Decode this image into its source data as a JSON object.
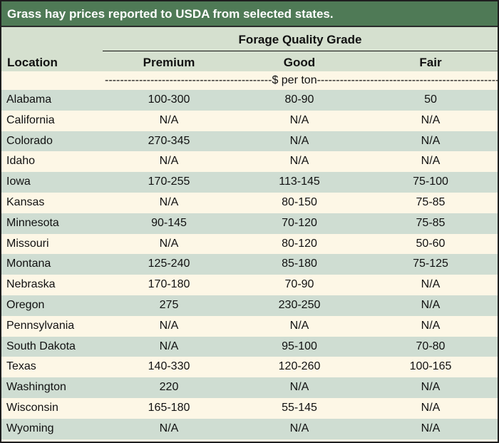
{
  "title": "Grass hay prices reported to USDA from selected states.",
  "header": {
    "location": "Location",
    "group": "Forage Quality Grade",
    "columns": [
      "Premium",
      "Good",
      "Fair"
    ]
  },
  "units": "--------------------------------------------$ per ton----------------------------------------------------",
  "rows": [
    {
      "location": "Alabama",
      "premium": "100-300",
      "good": "80-90",
      "fair": "50"
    },
    {
      "location": "California",
      "premium": "N/A",
      "good": "N/A",
      "fair": "N/A"
    },
    {
      "location": "Colorado",
      "premium": "270-345",
      "good": "N/A",
      "fair": "N/A"
    },
    {
      "location": "Idaho",
      "premium": "N/A",
      "good": "N/A",
      "fair": "N/A"
    },
    {
      "location": "Iowa",
      "premium": "170-255",
      "good": "113-145",
      "fair": "75-100"
    },
    {
      "location": "Kansas",
      "premium": "N/A",
      "good": "80-150",
      "fair": "75-85"
    },
    {
      "location": "Minnesota",
      "premium": "90-145",
      "good": "70-120",
      "fair": "75-85"
    },
    {
      "location": "Missouri",
      "premium": "N/A",
      "good": "80-120",
      "fair": "50-60"
    },
    {
      "location": "Montana",
      "premium": "125-240",
      "good": "85-180",
      "fair": "75-125"
    },
    {
      "location": "Nebraska",
      "premium": "170-180",
      "good": "70-90",
      "fair": "N/A"
    },
    {
      "location": "Oregon",
      "premium": "275",
      "good": "230-250",
      "fair": "N/A"
    },
    {
      "location": "Pennsylvania",
      "premium": "N/A",
      "good": "N/A",
      "fair": "N/A"
    },
    {
      "location": "South Dakota",
      "premium": "N/A",
      "good": "95-100",
      "fair": "70-80"
    },
    {
      "location": "Texas",
      "premium": "140-330",
      "good": "120-260",
      "fair": "100-165"
    },
    {
      "location": "Washington",
      "premium": "220",
      "good": "N/A",
      "fair": "N/A"
    },
    {
      "location": "Wisconsin",
      "premium": "165-180",
      "good": "55-145",
      "fair": "N/A"
    },
    {
      "location": "Wyoming",
      "premium": "N/A",
      "good": "N/A",
      "fair": "N/A"
    }
  ]
}
